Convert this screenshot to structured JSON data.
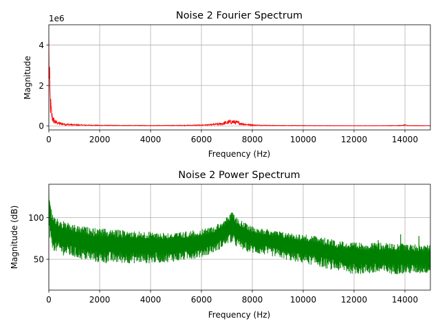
{
  "chart_data": [
    {
      "type": "line",
      "title": "Noise  2 Fourier Spectrum",
      "xlabel": "Frequency (Hz)",
      "ylabel": "Magnitude",
      "y_offset_label": "1e6",
      "xlim": [
        0,
        15000
      ],
      "ylim": [
        -0.2,
        5.0
      ],
      "y_scale_factor": 1000000,
      "xticks": [
        0,
        2000,
        4000,
        6000,
        8000,
        10000,
        12000,
        14000
      ],
      "yticks": [
        0,
        2,
        4
      ],
      "grid": true,
      "series": [
        {
          "color": "#ff0000",
          "x": [
            0,
            10,
            20,
            30,
            45,
            60,
            80,
            100,
            130,
            160,
            200,
            260,
            330,
            400,
            500,
            650,
            800,
            1000,
            1500,
            2000,
            3000,
            4000,
            5000,
            5800,
            6300,
            6700,
            6900,
            7050,
            7200,
            7350,
            7500,
            7700,
            7900,
            8100,
            8500,
            9000,
            10000,
            11000,
            12000,
            13000,
            13900,
            14000,
            14100,
            15000
          ],
          "y": [
            3.6,
            3.1,
            2.4,
            1.9,
            1.4,
            1.1,
            0.85,
            0.62,
            0.45,
            0.34,
            0.26,
            0.19,
            0.15,
            0.12,
            0.1,
            0.08,
            0.065,
            0.05,
            0.035,
            0.025,
            0.02,
            0.018,
            0.02,
            0.03,
            0.05,
            0.09,
            0.13,
            0.17,
            0.2,
            0.17,
            0.13,
            0.08,
            0.05,
            0.035,
            0.025,
            0.018,
            0.015,
            0.012,
            0.01,
            0.01,
            0.02,
            0.04,
            0.015,
            0.01
          ]
        }
      ]
    },
    {
      "type": "line",
      "title": "Noise  2 Power Spectrum",
      "xlabel": "Frequency (Hz)",
      "ylabel": "Magnitude (dB)",
      "xlim": [
        0,
        15000
      ],
      "ylim": [
        13,
        140
      ],
      "xticks": [
        0,
        2000,
        4000,
        6000,
        8000,
        10000,
        12000,
        14000
      ],
      "yticks": [
        50,
        100
      ],
      "grid": true,
      "series": [
        {
          "color": "#008000",
          "band_x": [
            0,
            50,
            100,
            200,
            300,
            500,
            800,
            1200,
            2000,
            3000,
            4000,
            5000,
            6000,
            6500,
            6900,
            7100,
            7200,
            7400,
            7700,
            8000,
            8500,
            9000,
            9500,
            10000,
            10500,
            11000,
            11500,
            12000,
            13000,
            14000,
            15000
          ],
          "band_low": [
            80,
            70,
            65,
            60,
            58,
            55,
            53,
            50,
            45,
            45,
            45,
            47,
            52,
            58,
            65,
            70,
            68,
            64,
            60,
            57,
            55,
            52,
            48,
            45,
            42,
            38,
            35,
            32,
            32,
            32,
            33
          ],
          "band_high": [
            138,
            118,
            110,
            103,
            100,
            97,
            93,
            90,
            87,
            85,
            83,
            82,
            86,
            90,
            98,
            103,
            107,
            100,
            94,
            90,
            87,
            84,
            82,
            80,
            78,
            75,
            72,
            70,
            70,
            69,
            67
          ],
          "spikes": [
            {
              "x": 13830,
              "y": 80
            },
            {
              "x": 14550,
              "y": 78
            },
            {
              "x": 12950,
              "y": 73
            },
            {
              "x": 11450,
              "y": 71
            }
          ]
        }
      ]
    }
  ]
}
